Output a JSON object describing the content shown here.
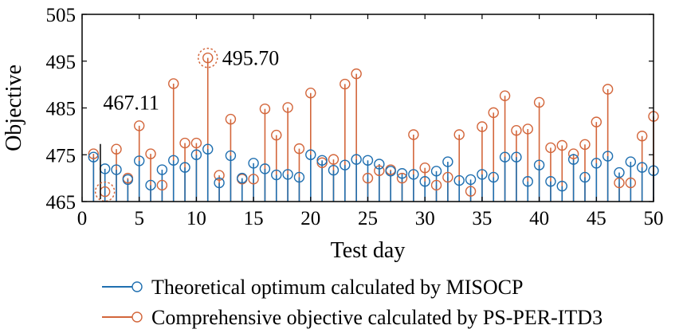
{
  "chart_data": {
    "type": "stem",
    "xlabel": "Test day",
    "ylabel": "Objective",
    "xlim": [
      0,
      50
    ],
    "ylim": [
      465,
      505
    ],
    "xticks": [
      0,
      5,
      10,
      15,
      20,
      25,
      30,
      35,
      40,
      45,
      50
    ],
    "yticks": [
      465,
      475,
      485,
      495,
      505
    ],
    "baseline": 465,
    "grid": false,
    "legend_position": "bottom",
    "x": [
      1,
      2,
      3,
      4,
      5,
      6,
      7,
      8,
      9,
      10,
      11,
      12,
      13,
      14,
      15,
      16,
      17,
      18,
      19,
      20,
      21,
      22,
      23,
      24,
      25,
      26,
      27,
      28,
      29,
      30,
      31,
      32,
      33,
      34,
      35,
      36,
      37,
      38,
      39,
      40,
      41,
      42,
      43,
      44,
      45,
      46,
      47,
      48,
      49,
      50
    ],
    "series": [
      {
        "name": "Theoretical optimum calculated by MISOCP",
        "color": "#1f6fb0",
        "values": [
          474.5,
          472.0,
          471.8,
          469.7,
          473.7,
          468.5,
          471.8,
          473.8,
          472.3,
          475.0,
          476.2,
          469.0,
          474.8,
          470.0,
          473.2,
          472.0,
          470.7,
          470.8,
          470.2,
          475.0,
          473.8,
          471.7,
          472.8,
          474.0,
          473.8,
          473.0,
          471.5,
          471.0,
          470.8,
          469.3,
          471.5,
          473.5,
          469.5,
          469.7,
          470.8,
          470.2,
          474.5,
          474.5,
          469.3,
          472.8,
          469.3,
          468.3,
          474.0,
          470.2,
          473.2,
          474.7,
          471.2,
          473.5,
          472.3,
          471.6
        ]
      },
      {
        "name": "Comprehensive objective calculated by PS-PER-ITD3",
        "color": "#d3663b",
        "values": [
          475.2,
          467.11,
          476.2,
          470.0,
          481.2,
          475.2,
          468.5,
          490.2,
          477.5,
          477.5,
          495.7,
          470.6,
          482.6,
          469.8,
          469.8,
          484.8,
          479.2,
          485.1,
          476.3,
          488.2,
          473.3,
          474.0,
          490.1,
          492.3,
          470.0,
          471.6,
          471.8,
          470.0,
          479.3,
          472.2,
          468.5,
          470.2,
          479.3,
          467.2,
          481.0,
          484.0,
          487.6,
          480.2,
          480.5,
          486.2,
          476.5,
          477.0,
          475.2,
          477.2,
          482.0,
          489.0,
          469.0,
          469.0,
          479.0,
          483.2
        ]
      }
    ],
    "annotations": [
      {
        "label": "467.11",
        "x": 2,
        "y": 467.11,
        "series": 1
      },
      {
        "label": "495.70",
        "x": 11,
        "y": 495.7,
        "series": 1
      }
    ]
  }
}
